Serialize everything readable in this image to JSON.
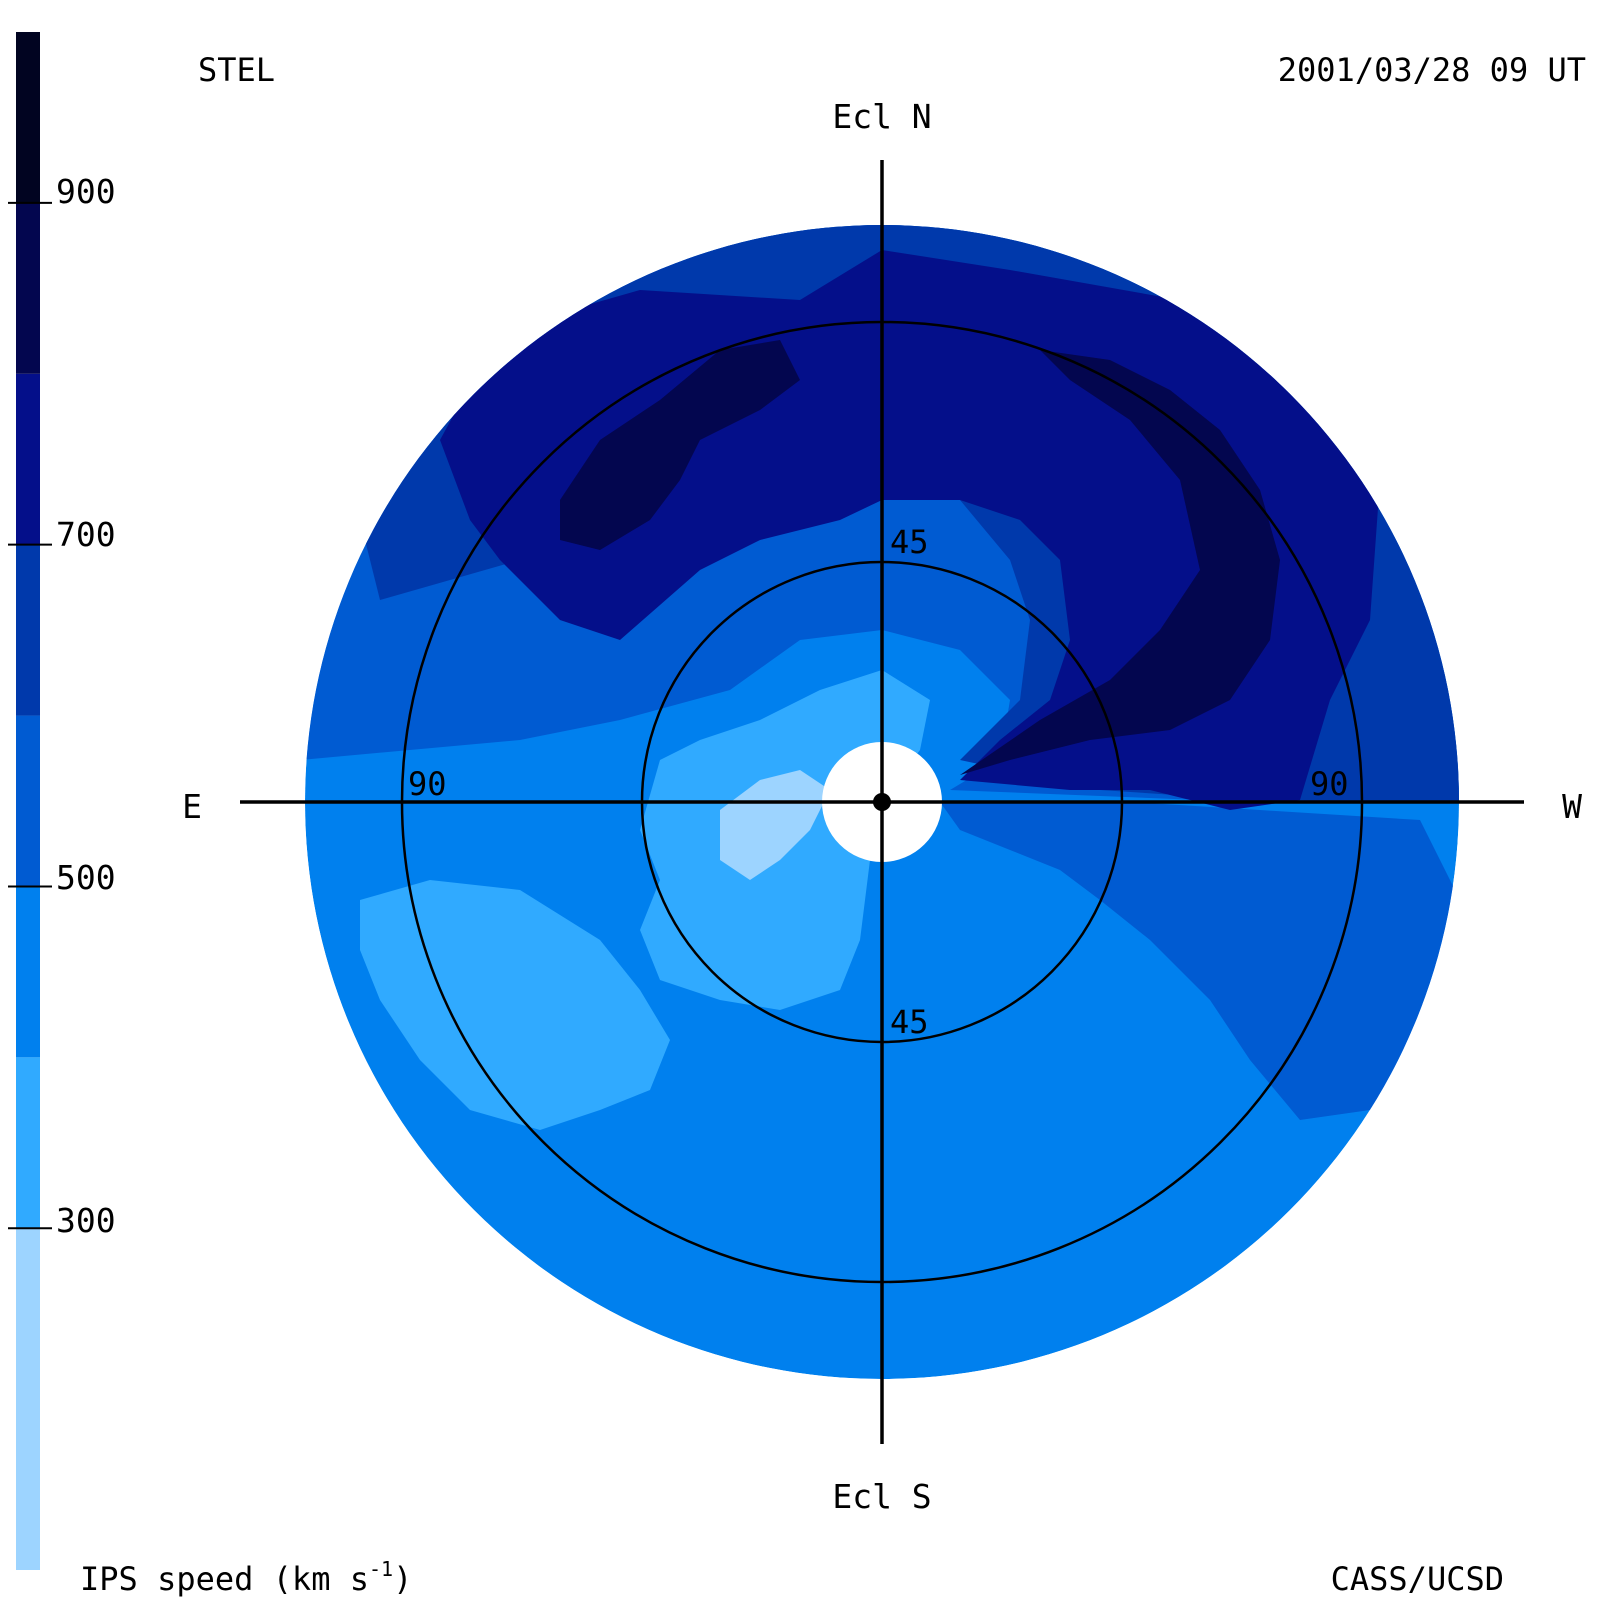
{
  "header": {
    "source": "STEL",
    "timestamp": "2001/03/28 09 UT"
  },
  "footer": {
    "colorbar_title": "IPS speed (km s",
    "colorbar_title_sup": "-1",
    "colorbar_title_end": ")",
    "credit": "CASS/UCSD"
  },
  "colorbar": {
    "tick_labels": [
      "900",
      "700",
      "500",
      "300"
    ],
    "tick_values": [
      900,
      700,
      500,
      300
    ],
    "range": [
      100,
      1000
    ],
    "bands": [
      {
        "from": 100,
        "to": 300,
        "color": "#9dd4ff"
      },
      {
        "from": 300,
        "to": 400,
        "color": "#30aaff"
      },
      {
        "from": 400,
        "to": 500,
        "color": "#0080ee"
      },
      {
        "from": 500,
        "to": 600,
        "color": "#005bd2"
      },
      {
        "from": 600,
        "to": 700,
        "color": "#0039ab"
      },
      {
        "from": 700,
        "to": 800,
        "color": "#040f8a"
      },
      {
        "from": 800,
        "to": 900,
        "color": "#03064f"
      },
      {
        "from": 900,
        "to": 1000,
        "color": "#010421"
      }
    ]
  },
  "map": {
    "direction_labels": {
      "north": "Ecl N",
      "south": "Ecl S",
      "east": "E",
      "west": "W"
    },
    "ring_labels": {
      "inner_top": "45",
      "inner_bottom": "45",
      "outer_left": "90",
      "outer_right": "90"
    },
    "colors": {
      "c1": "#9dd4ff",
      "c2": "#30aaff",
      "c3": "#0080ee",
      "c4": "#005bd2",
      "c5": "#0039ab",
      "c6": "#040f8a",
      "c7": "#03064f"
    }
  }
}
